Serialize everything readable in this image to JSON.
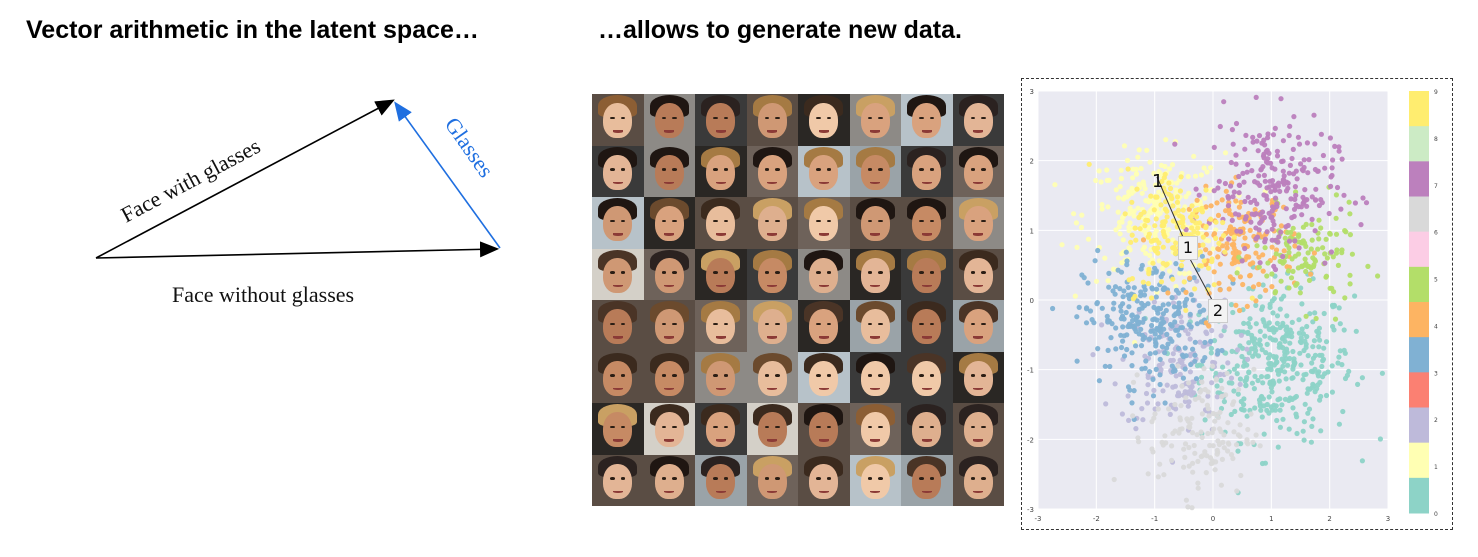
{
  "left_heading": "Vector arithmetic in the latent space…",
  "right_heading": "…allows to generate new data.",
  "vector_diagram": {
    "label_face_with_glasses": "Face with glasses",
    "label_glasses": "Glasses",
    "label_face_without_glasses": "Face without glasses",
    "glasses_color": "#1f6fe0"
  },
  "face_grid": {
    "rows": 8,
    "cols": 8
  },
  "scatter": {
    "digit_annotations": [
      "1",
      "2"
    ],
    "colorbar_ticks": [
      "9",
      "8",
      "7",
      "6",
      "5",
      "4",
      "3",
      "2",
      "1",
      "0"
    ],
    "colorbar_colors": [
      "#ffed6f",
      "#ccebc5",
      "#bc80bd",
      "#d9d9d9",
      "#fccde5",
      "#b3de69",
      "#fdb462",
      "#80b1d3",
      "#fb8072",
      "#bebada",
      "#ffffb3",
      "#8dd3c7"
    ]
  },
  "chart_data": {
    "type": "scatter",
    "xlim": [
      -3,
      3
    ],
    "ylim": [
      -3,
      3
    ],
    "x_ticks": [
      "-3",
      "-2",
      "-1",
      "0",
      "1",
      "2",
      "3"
    ],
    "y_ticks": [
      "3",
      "2",
      "1",
      "0",
      "-1",
      "-2",
      "-3"
    ],
    "clusters": [
      {
        "class": "0",
        "color": "#8dd3c7",
        "center": [
          1.1,
          -0.9
        ],
        "spread": [
          0.65,
          0.55
        ],
        "n": 380
      },
      {
        "class": "1",
        "color": "#ffffb3",
        "center": [
          -1.0,
          1.2
        ],
        "spread": [
          0.6,
          0.45
        ],
        "n": 240
      },
      {
        "class": "2",
        "color": "#bebada",
        "center": [
          -0.6,
          -0.9
        ],
        "spread": [
          0.5,
          0.5
        ],
        "n": 150
      },
      {
        "class": "3",
        "color": "#80b1d3",
        "center": [
          -1.1,
          -0.3
        ],
        "spread": [
          0.55,
          0.45
        ],
        "n": 260
      },
      {
        "class": "4",
        "color": "#fdb462",
        "center": [
          0.5,
          0.8
        ],
        "spread": [
          0.45,
          0.4
        ],
        "n": 160
      },
      {
        "class": "5",
        "color": "#b3de69",
        "center": [
          1.6,
          0.6
        ],
        "spread": [
          0.45,
          0.35
        ],
        "n": 120
      },
      {
        "class": "7",
        "color": "#bc80bd",
        "center": [
          1.0,
          1.6
        ],
        "spread": [
          0.55,
          0.5
        ],
        "n": 240
      },
      {
        "class": "8",
        "color": "#d9d9d9",
        "center": [
          -0.2,
          -1.9
        ],
        "spread": [
          0.45,
          0.45
        ],
        "n": 140
      },
      {
        "class": "9",
        "color": "#ffed6f",
        "center": [
          -0.6,
          1.0
        ],
        "spread": [
          0.45,
          0.45
        ],
        "n": 160
      }
    ]
  }
}
